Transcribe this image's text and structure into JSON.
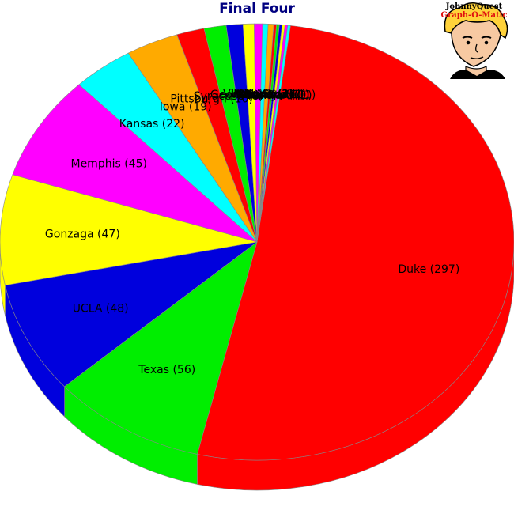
{
  "chart_data": {
    "type": "pie",
    "title": "Final Four",
    "slices": [
      {
        "label": "Duke (297)",
        "name": "Duke",
        "value": 297,
        "color": "#ff0000"
      },
      {
        "label": "Texas (56)",
        "name": "Texas",
        "value": 56,
        "color": "#00ee00"
      },
      {
        "label": "UCLA (48)",
        "name": "UCLA",
        "value": 48,
        "color": "#0000dd"
      },
      {
        "label": "Gonzaga (47)",
        "name": "Gonzaga",
        "value": 47,
        "color": "#ffff00"
      },
      {
        "label": "Memphis (45)",
        "name": "Memphis",
        "value": 45,
        "color": "#ff00ff"
      },
      {
        "label": "Kansas (22)",
        "name": "Kansas",
        "value": 22,
        "color": "#00ffff"
      },
      {
        "label": "Iowa (19)",
        "name": "Iowa",
        "value": 19,
        "color": "#ffaa00"
      },
      {
        "label": "Pittsburgh (10)",
        "name": "Pittsburgh",
        "value": 10,
        "color": "#ff0000"
      },
      {
        "label": "Syracuse (8)",
        "name": "Syracuse",
        "value": 8,
        "color": "#00ee00"
      },
      {
        "label": "Georgia (6)",
        "name": "Georgia",
        "value": 6,
        "color": "#0000dd"
      },
      {
        "label": "LSU (4)",
        "name": "LSU",
        "value": 4,
        "color": "#ffff00"
      },
      {
        "label": "Villanova (3)",
        "name": "Villanova",
        "value": 3,
        "color": "#ff00ff"
      },
      {
        "label": "Arizona (2)",
        "name": "Arizona",
        "value": 2,
        "color": "#00ffff"
      },
      {
        "label": "Illinois (2)",
        "name": "Illinois",
        "value": 2,
        "color": "#ffaa00"
      },
      {
        "label": "Kentucky (1)",
        "name": "Kentucky",
        "value": 1,
        "color": "#ff0000"
      },
      {
        "label": "Maryland (1)",
        "name": "Maryland",
        "value": 1,
        "color": "#00ee00"
      },
      {
        "label": "Florida (1)",
        "name": "Florida",
        "value": 1,
        "color": "#0000dd"
      },
      {
        "label": "Michigan (1)",
        "name": "Michigan",
        "value": 1,
        "color": "#ffff00"
      },
      {
        "label": "Ohio State (1)",
        "name": "Ohio State",
        "value": 1,
        "color": "#ff00ff"
      },
      {
        "label": "Stanford (1)",
        "name": "Stanford",
        "value": 1,
        "color": "#00ffff"
      }
    ],
    "title_color": "#000080",
    "three_d": true
  },
  "logo": {
    "line1": "JohnnyQuest",
    "line2": "Graph-O-Matic"
  }
}
